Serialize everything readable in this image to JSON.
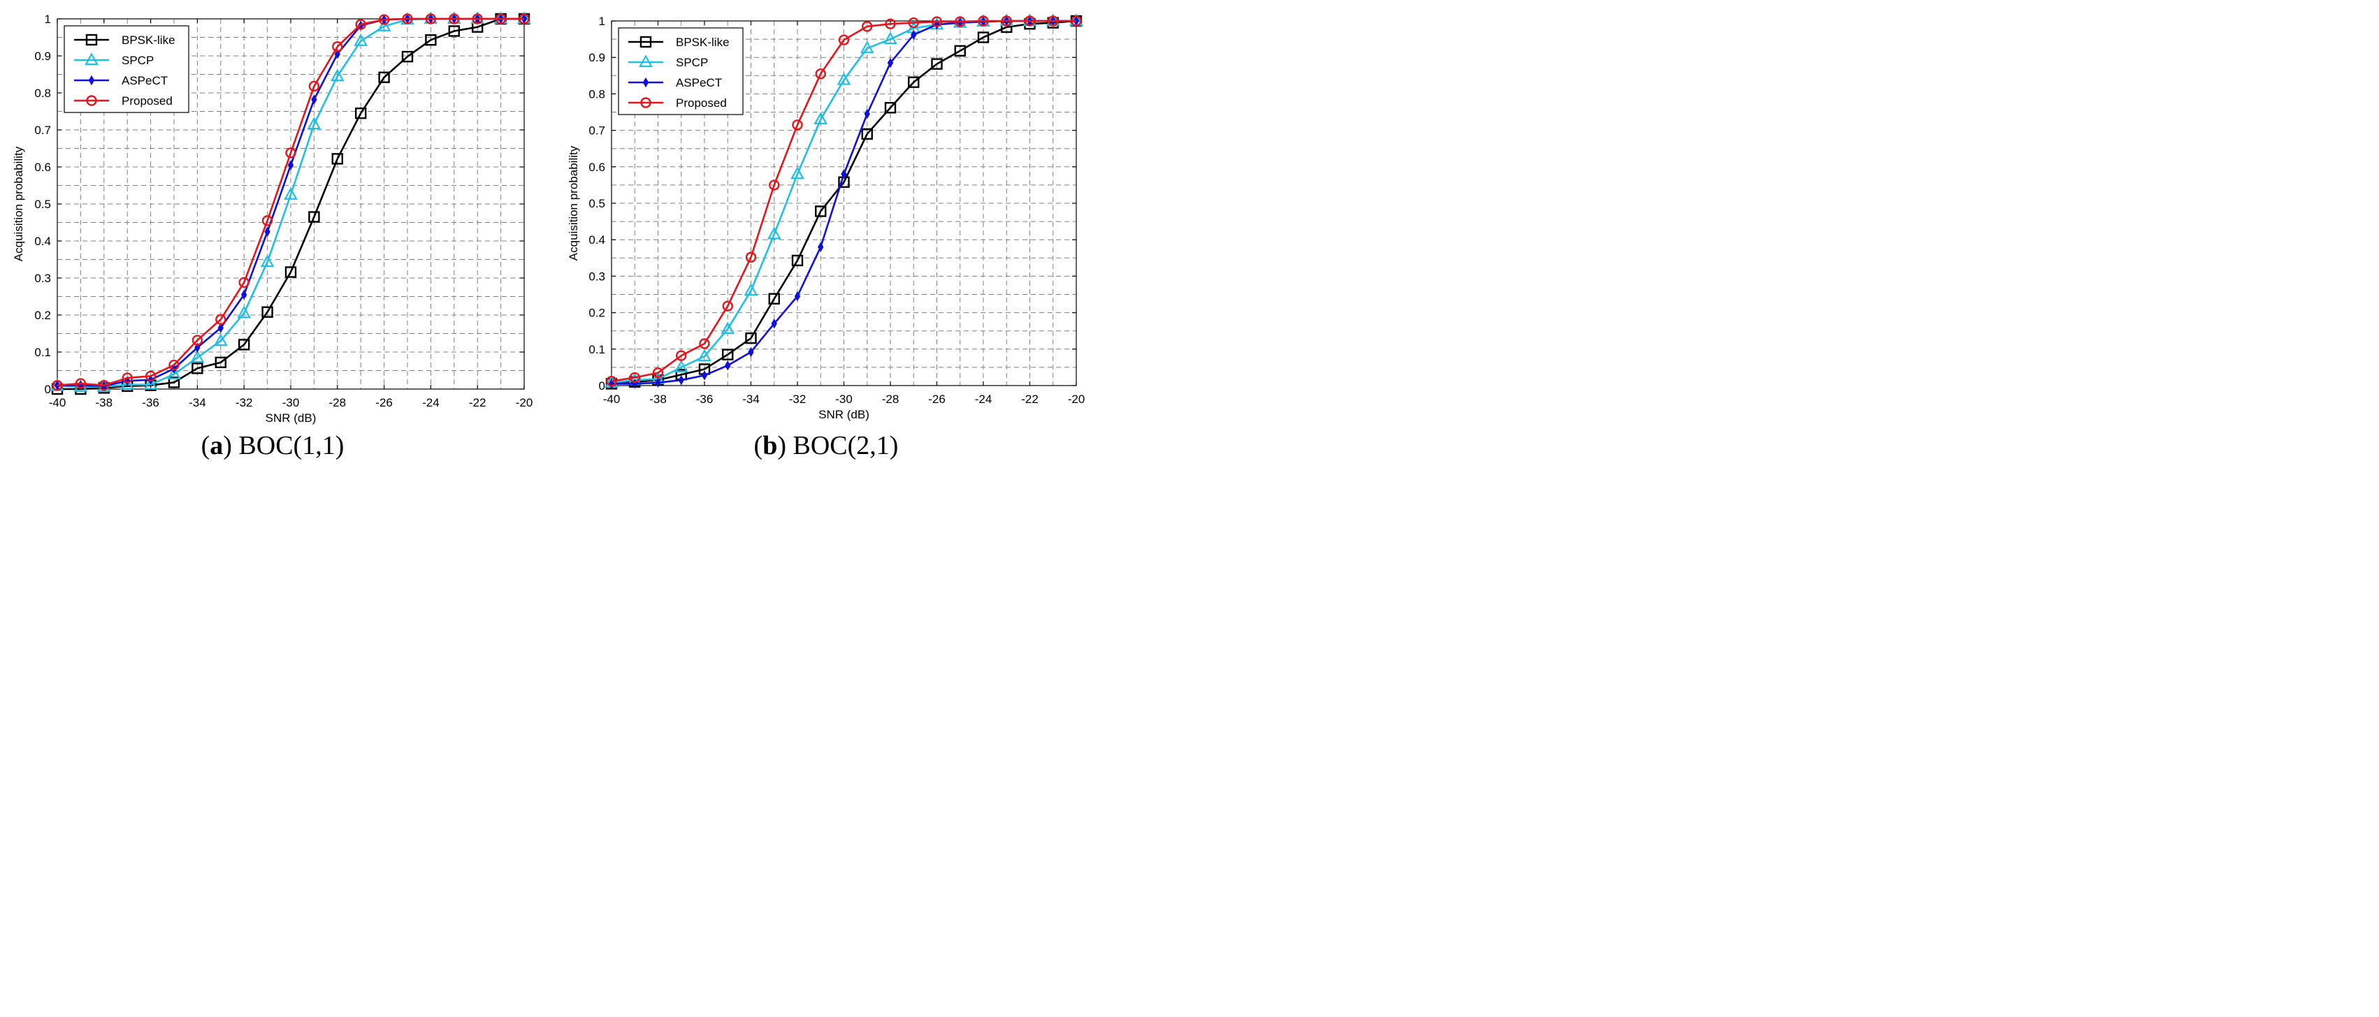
{
  "colors": {
    "bpsk": "#000000",
    "spcp": "#1fbfe6",
    "aspect": "#1010d8",
    "proposed": "#e8141b",
    "grid": "#808080",
    "axis": "#000000"
  },
  "legend_labels": [
    "BPSK-like",
    "SPCP",
    "ASPeCT",
    "Proposed"
  ],
  "chart_data": [
    {
      "type": "line",
      "panel": "a",
      "caption_letter": "(a)",
      "caption_text": "BOC(1,1)",
      "title": "",
      "xlabel": "SNR (dB)",
      "ylabel": "Acquisition probability",
      "xlim": [
        -40,
        -20
      ],
      "ylim": [
        0,
        1
      ],
      "xtick_values": [
        -40,
        -38,
        -36,
        -34,
        -32,
        -30,
        -28,
        -26,
        -24,
        -22,
        -20
      ],
      "xtick_labels": [
        "-40",
        "-38",
        "-36",
        "-34",
        "-32",
        "-30",
        "-28",
        "-26",
        "-24",
        "-22",
        "-20"
      ],
      "ytick_values": [
        0,
        0.1,
        0.2,
        0.3,
        0.4,
        0.5,
        0.6,
        0.7,
        0.8,
        0.9,
        1
      ],
      "ytick_labels": [
        "0",
        "0.1",
        "0.2",
        "0.3",
        "0.4",
        "0.5",
        "0.6",
        "0.7",
        "0.8",
        "0.9",
        "1"
      ],
      "grid": true,
      "legend_position": "top-left",
      "x": [
        -40,
        -39,
        -38,
        -37,
        -36,
        -35,
        -34,
        -33,
        -32,
        -31,
        -30,
        -29,
        -28,
        -27,
        -26,
        -25,
        -24,
        -23,
        -22,
        -21,
        -20
      ],
      "series": [
        {
          "name": "BPSK-like",
          "marker": "square",
          "values": [
            0.0,
            0.0,
            0.003,
            0.008,
            0.01,
            0.018,
            0.056,
            0.072,
            0.12,
            0.208,
            0.316,
            0.465,
            0.622,
            0.745,
            0.842,
            0.898,
            0.943,
            0.967,
            0.978,
            1.0,
            1.0
          ]
        },
        {
          "name": "SPCP",
          "marker": "triangle",
          "values": [
            0.008,
            0.006,
            0.006,
            0.012,
            0.012,
            0.04,
            0.085,
            0.13,
            0.205,
            0.343,
            0.525,
            0.715,
            0.845,
            0.94,
            0.98,
            0.998,
            1.0,
            1.0,
            1.0,
            1.0,
            1.0
          ]
        },
        {
          "name": "ASPeCT",
          "marker": "plus",
          "values": [
            0.01,
            0.01,
            0.008,
            0.022,
            0.025,
            0.055,
            0.112,
            0.165,
            0.255,
            0.425,
            0.605,
            0.782,
            0.905,
            0.982,
            0.998,
            1.0,
            1.0,
            1.0,
            1.0,
            1.0,
            1.0
          ]
        },
        {
          "name": "Proposed",
          "marker": "circle",
          "values": [
            0.01,
            0.015,
            0.01,
            0.03,
            0.035,
            0.065,
            0.132,
            0.188,
            0.288,
            0.455,
            0.638,
            0.818,
            0.925,
            0.985,
            0.998,
            1.0,
            1.0,
            1.0,
            1.0,
            1.0,
            1.0
          ]
        }
      ]
    },
    {
      "type": "line",
      "panel": "b",
      "caption_letter": "(b)",
      "caption_text": "BOC(2,1)",
      "title": "",
      "xlabel": "SNR (dB)",
      "ylabel": "Acquisition probability",
      "xlim": [
        -40,
        -20
      ],
      "ylim": [
        0,
        1
      ],
      "xtick_values": [
        -40,
        -38,
        -36,
        -34,
        -32,
        -30,
        -28,
        -26,
        -24,
        -22,
        -20
      ],
      "xtick_labels": [
        "-40",
        "-38",
        "-36",
        "-34",
        "-32",
        "-30",
        "-28",
        "-26",
        "-24",
        "-22",
        "-20"
      ],
      "ytick_values": [
        0,
        0.1,
        0.2,
        0.3,
        0.4,
        0.5,
        0.6,
        0.7,
        0.8,
        0.9,
        1
      ],
      "ytick_labels": [
        "0",
        "0.1",
        "0.2",
        "0.3",
        "0.4",
        "0.5",
        "0.6",
        "0.7",
        "0.8",
        "0.9",
        "1"
      ],
      "grid": true,
      "legend_position": "top-left",
      "x": [
        -40,
        -39,
        -38,
        -37,
        -36,
        -35,
        -34,
        -33,
        -32,
        -31,
        -30,
        -29,
        -28,
        -27,
        -26,
        -25,
        -24,
        -23,
        -22,
        -21,
        -20
      ],
      "series": [
        {
          "name": "BPSK-like",
          "marker": "square",
          "values": [
            0.005,
            0.01,
            0.015,
            0.03,
            0.045,
            0.085,
            0.13,
            0.238,
            0.343,
            0.478,
            0.558,
            0.69,
            0.762,
            0.832,
            0.882,
            0.918,
            0.955,
            0.983,
            0.992,
            0.995,
            1.0
          ]
        },
        {
          "name": "SPCP",
          "marker": "triangle",
          "values": [
            0.008,
            0.015,
            0.018,
            0.05,
            0.08,
            0.155,
            0.26,
            0.415,
            0.58,
            0.73,
            0.838,
            0.925,
            0.95,
            0.98,
            0.99,
            0.995,
            0.998,
            1.0,
            1.0,
            1.0,
            1.0
          ]
        },
        {
          "name": "ASPeCT",
          "marker": "plus",
          "values": [
            0.005,
            0.005,
            0.008,
            0.015,
            0.028,
            0.055,
            0.092,
            0.17,
            0.245,
            0.38,
            0.58,
            0.745,
            0.885,
            0.962,
            0.99,
            0.995,
            0.998,
            1.0,
            1.0,
            1.0,
            1.0
          ]
        },
        {
          "name": "Proposed",
          "marker": "circle",
          "values": [
            0.012,
            0.022,
            0.035,
            0.082,
            0.115,
            0.218,
            0.352,
            0.55,
            0.715,
            0.855,
            0.948,
            0.985,
            0.992,
            0.995,
            0.998,
            0.998,
            1.0,
            1.0,
            1.0,
            1.0,
            1.0
          ]
        }
      ]
    }
  ]
}
